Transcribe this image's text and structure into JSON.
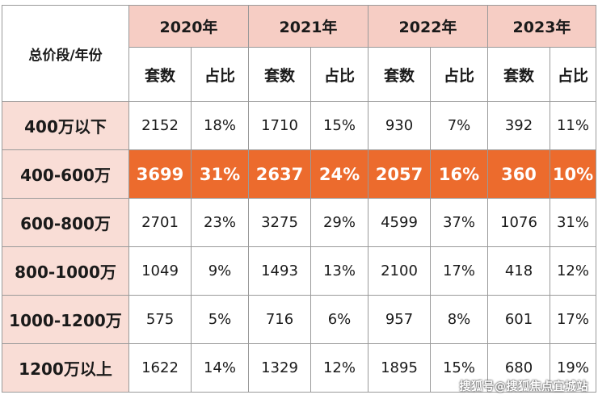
{
  "table": {
    "corner_label": "总价段/年份",
    "years": [
      "2020年",
      "2021年",
      "2022年",
      "2023年"
    ],
    "sub_headers": [
      "套数",
      "占比"
    ],
    "rows": [
      {
        "label": "400万以下",
        "values": [
          "2152",
          "18%",
          "1710",
          "15%",
          "930",
          "7%",
          "392",
          "11%"
        ],
        "highlight": false
      },
      {
        "label": "400-600万",
        "values": [
          "3699",
          "31%",
          "2637",
          "24%",
          "2057",
          "16%",
          "360",
          "10%"
        ],
        "highlight": true
      },
      {
        "label": "600-800万",
        "values": [
          "2701",
          "23%",
          "3275",
          "29%",
          "4599",
          "37%",
          "1076",
          "31%"
        ],
        "highlight": false
      },
      {
        "label": "800-1000万",
        "values": [
          "1049",
          "9%",
          "1493",
          "13%",
          "2100",
          "17%",
          "418",
          "12%"
        ],
        "highlight": false
      },
      {
        "label": "1000-1200万",
        "values": [
          "575",
          "5%",
          "716",
          "6%",
          "957",
          "8%",
          "601",
          "17%"
        ],
        "highlight": false
      },
      {
        "label": "1200万以上",
        "values": [
          "1622",
          "14%",
          "1329",
          "12%",
          "1895",
          "15%",
          "680",
          "19%"
        ],
        "highlight": false
      }
    ]
  },
  "colors": {
    "year_header_bg": "#f6cdc4",
    "row_header_bg": "#f9ddd6",
    "highlight_bg": "#ec6b2d",
    "border": "#9a9a9a"
  },
  "watermark": "搜狐号@搜狐焦点宜城站"
}
